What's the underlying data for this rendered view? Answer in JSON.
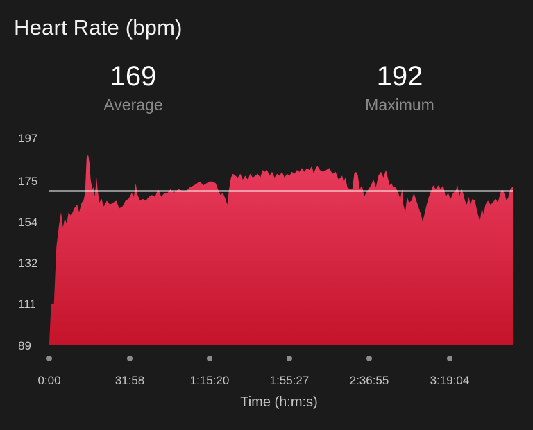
{
  "header": {
    "title": "Heart Rate (bpm)"
  },
  "stats": {
    "average": {
      "value": "169",
      "label": "Average"
    },
    "maximum": {
      "value": "192",
      "label": "Maximum"
    }
  },
  "colors": {
    "background": "#1b1b1b",
    "fill_top": "#ea3d5e",
    "fill_bottom": "#c4142b",
    "average_line": "#ffffff",
    "tick_dot": "#8c8c8c"
  },
  "chart_data": {
    "type": "area",
    "title": "Heart Rate (bpm)",
    "xlabel": "Time (h:m:s)",
    "ylabel": "",
    "ylim": [
      89,
      197
    ],
    "xlim_seconds": [
      0,
      14900
    ],
    "yticks": [
      "197",
      "175",
      "154",
      "132",
      "111",
      "89"
    ],
    "xticks": [
      {
        "label": "0:00",
        "seconds": 0
      },
      {
        "label": "31:58",
        "seconds": 1918
      },
      {
        "label": "1:15:20",
        "seconds": 4520
      },
      {
        "label": "1:55:27",
        "seconds": 6927
      },
      {
        "label": "2:36:55",
        "seconds": 9415
      },
      {
        "label": "3:19:04",
        "seconds": 11944
      }
    ],
    "average": 169,
    "maximum": 192,
    "series": [
      {
        "values": [
          [
            0,
            90
          ],
          [
            60,
            110
          ],
          [
            150,
            110
          ],
          [
            230,
            140
          ],
          [
            320,
            152
          ],
          [
            380,
            158
          ],
          [
            440,
            150
          ],
          [
            500,
            155
          ],
          [
            560,
            152
          ],
          [
            620,
            158
          ],
          [
            700,
            156
          ],
          [
            800,
            160
          ],
          [
            900,
            162
          ],
          [
            960,
            158
          ],
          [
            1040,
            163
          ],
          [
            1100,
            164
          ],
          [
            1150,
            168
          ],
          [
            1200,
            186
          ],
          [
            1250,
            188
          ],
          [
            1290,
            184
          ],
          [
            1330,
            175
          ],
          [
            1380,
            170
          ],
          [
            1420,
            171
          ],
          [
            1460,
            166
          ],
          [
            1520,
            176
          ],
          [
            1560,
            169
          ],
          [
            1610,
            163
          ],
          [
            1680,
            165
          ],
          [
            1750,
            161
          ],
          [
            1850,
            164
          ],
          [
            1950,
            162
          ],
          [
            2050,
            163
          ],
          [
            2150,
            164
          ],
          [
            2250,
            160
          ],
          [
            2350,
            161
          ],
          [
            2450,
            164
          ],
          [
            2550,
            165
          ],
          [
            2650,
            168
          ],
          [
            2720,
            166
          ],
          [
            2780,
            173
          ],
          [
            2840,
            167
          ],
          [
            2920,
            164
          ],
          [
            3000,
            165
          ],
          [
            3100,
            164
          ],
          [
            3200,
            166
          ],
          [
            3300,
            167
          ],
          [
            3400,
            166
          ],
          [
            3500,
            170
          ],
          [
            3600,
            166
          ],
          [
            3700,
            168
          ],
          [
            3800,
            168
          ],
          [
            3900,
            170
          ],
          [
            4000,
            168
          ],
          [
            4150,
            170
          ],
          [
            4300,
            169
          ],
          [
            4400,
            169
          ],
          [
            4520,
            171
          ],
          [
            4650,
            172
          ],
          [
            4750,
            173
          ],
          [
            4850,
            174
          ],
          [
            4950,
            172
          ],
          [
            5050,
            173
          ],
          [
            5150,
            174
          ],
          [
            5250,
            174
          ],
          [
            5350,
            173
          ],
          [
            5420,
            170
          ],
          [
            5500,
            167
          ],
          [
            5580,
            168
          ],
          [
            5660,
            165
          ],
          [
            5720,
            162
          ],
          [
            5780,
            170
          ],
          [
            5840,
            176
          ],
          [
            5900,
            178
          ],
          [
            5980,
            177
          ],
          [
            6060,
            176
          ],
          [
            6140,
            178
          ],
          [
            6220,
            175
          ],
          [
            6300,
            177
          ],
          [
            6380,
            175
          ],
          [
            6460,
            178
          ],
          [
            6540,
            176
          ],
          [
            6620,
            177
          ],
          [
            6700,
            178
          ],
          [
            6780,
            176
          ],
          [
            6860,
            180
          ],
          [
            6927,
            179
          ],
          [
            7000,
            180
          ],
          [
            7080,
            177
          ],
          [
            7160,
            179
          ],
          [
            7240,
            176
          ],
          [
            7320,
            178
          ],
          [
            7400,
            177
          ],
          [
            7480,
            179
          ],
          [
            7560,
            176
          ],
          [
            7640,
            178
          ],
          [
            7720,
            177
          ],
          [
            7800,
            179
          ],
          [
            7880,
            178
          ],
          [
            7960,
            180
          ],
          [
            8040,
            179
          ],
          [
            8120,
            181
          ],
          [
            8200,
            179
          ],
          [
            8280,
            181
          ],
          [
            8360,
            180
          ],
          [
            8440,
            182
          ],
          [
            8500,
            178
          ],
          [
            8560,
            181
          ],
          [
            8620,
            182
          ],
          [
            8700,
            180
          ],
          [
            8800,
            179
          ],
          [
            8900,
            180
          ],
          [
            9000,
            181
          ],
          [
            9100,
            178
          ],
          [
            9200,
            179
          ],
          [
            9300,
            175
          ],
          [
            9360,
            176
          ],
          [
            9415,
            177
          ],
          [
            9460,
            174
          ],
          [
            9520,
            176
          ],
          [
            9580,
            171
          ],
          [
            9660,
            170
          ],
          [
            9740,
            170
          ],
          [
            9800,
            178
          ],
          [
            9860,
            179
          ],
          [
            9920,
            177
          ],
          [
            9980,
            170
          ],
          [
            10050,
            172
          ],
          [
            10120,
            166
          ],
          [
            10180,
            168
          ],
          [
            10260,
            170
          ],
          [
            10340,
            172
          ],
          [
            10420,
            175
          ],
          [
            10500,
            171
          ],
          [
            10580,
            177
          ],
          [
            10660,
            179
          ],
          [
            10740,
            176
          ],
          [
            10820,
            180
          ],
          [
            10880,
            176
          ],
          [
            10940,
            172
          ],
          [
            11000,
            173
          ],
          [
            11060,
            171
          ],
          [
            11120,
            171
          ],
          [
            11200,
            169
          ],
          [
            11280,
            165
          ],
          [
            11340,
            170
          ],
          [
            11380,
            162
          ],
          [
            11440,
            158
          ],
          [
            11500,
            166
          ],
          [
            11560,
            163
          ],
          [
            11640,
            164
          ],
          [
            11720,
            168
          ],
          [
            11800,
            164
          ],
          [
            11880,
            160
          ],
          [
            11944,
            157
          ],
          [
            12000,
            153
          ],
          [
            12060,
            157
          ],
          [
            12130,
            162
          ],
          [
            12200,
            166
          ],
          [
            12270,
            169
          ],
          [
            12340,
            172
          ],
          [
            12420,
            170
          ],
          [
            12500,
            172
          ],
          [
            12580,
            170
          ],
          [
            12660,
            172
          ],
          [
            12740,
            166
          ],
          [
            12820,
            168
          ],
          [
            12900,
            165
          ],
          [
            12980,
            168
          ],
          [
            13060,
            169
          ],
          [
            13120,
            172
          ],
          [
            13180,
            166
          ],
          [
            13240,
            170
          ],
          [
            13300,
            168
          ],
          [
            13360,
            164
          ],
          [
            13420,
            162
          ],
          [
            13480,
            166
          ],
          [
            13540,
            162
          ],
          [
            13600,
            165
          ],
          [
            13680,
            164
          ],
          [
            13760,
            158
          ],
          [
            13840,
            153
          ],
          [
            13900,
            160
          ],
          [
            13960,
            157
          ],
          [
            14020,
            162
          ],
          [
            14100,
            164
          ],
          [
            14180,
            162
          ],
          [
            14260,
            163
          ],
          [
            14340,
            165
          ],
          [
            14420,
            163
          ],
          [
            14500,
            168
          ],
          [
            14560,
            170
          ],
          [
            14620,
            168
          ],
          [
            14700,
            164
          ],
          [
            14760,
            166
          ],
          [
            14820,
            170
          ],
          [
            14880,
            171
          ],
          [
            14900,
            171
          ]
        ]
      }
    ]
  }
}
